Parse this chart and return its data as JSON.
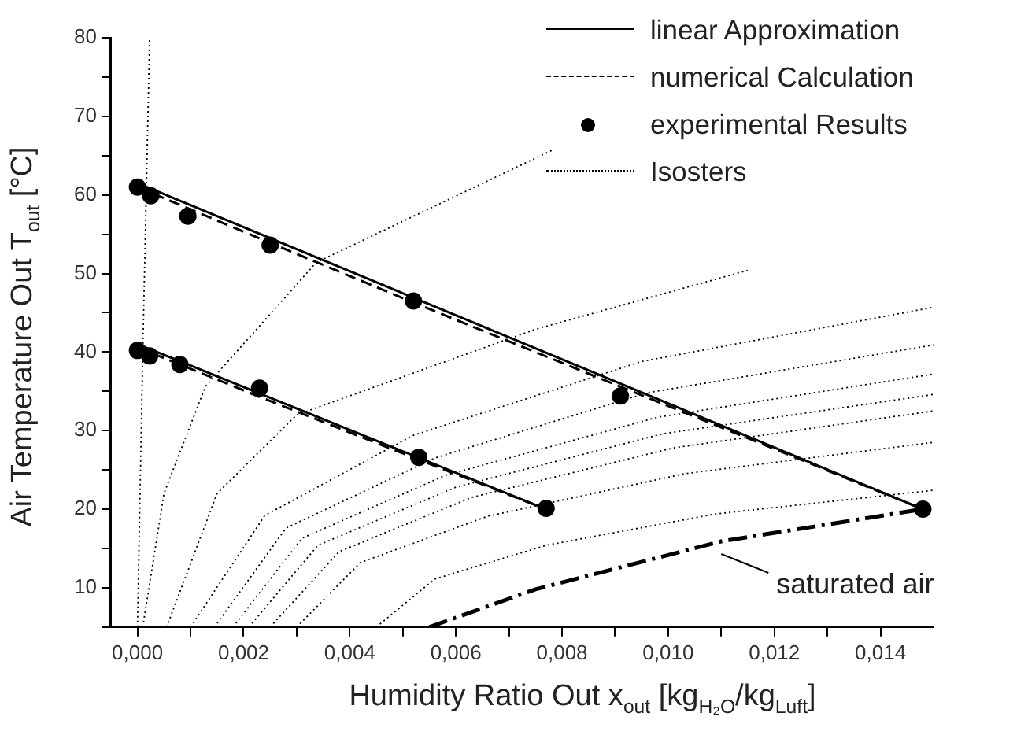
{
  "chart_data": {
    "type": "line",
    "xlabel": "Humidity Ratio Out  x$_{out}$  [kg$_{H₂O}$/kg$_{Luft}$]",
    "ylabel": "Air Temperature Out  T$_{out}$  [°C]",
    "xlim": [
      -0.0005,
      0.015
    ],
    "ylim": [
      5,
      80
    ],
    "xticks": [
      {
        "value": 0,
        "label": "0,000"
      },
      {
        "value": 0.001,
        "label": null
      },
      {
        "value": 0.002,
        "label": "0,002"
      },
      {
        "value": 0.003,
        "label": null
      },
      {
        "value": 0.004,
        "label": "0,004"
      },
      {
        "value": 0.005,
        "label": null
      },
      {
        "value": 0.006,
        "label": "0,006"
      },
      {
        "value": 0.007,
        "label": null
      },
      {
        "value": 0.008,
        "label": "0,008"
      },
      {
        "value": 0.009,
        "label": null
      },
      {
        "value": 0.01,
        "label": "0,010"
      },
      {
        "value": 0.011,
        "label": null
      },
      {
        "value": 0.012,
        "label": "0,012"
      },
      {
        "value": 0.013,
        "label": null
      },
      {
        "value": 0.014,
        "label": "0,014"
      }
    ],
    "yticks": [
      {
        "value": 5,
        "label": null
      },
      10,
      {
        "value": 15,
        "label": null
      },
      20,
      {
        "value": 25,
        "label": null
      },
      30,
      {
        "value": 35,
        "label": null
      },
      40,
      {
        "value": 45,
        "label": null
      },
      50,
      {
        "value": 55,
        "label": null
      },
      60,
      {
        "value": 65,
        "label": null
      },
      70,
      {
        "value": 75,
        "label": null
      },
      80
    ],
    "legend": "top right",
    "series": [
      {
        "name": "linear Approximation",
        "color": "#000000",
        "line_style": "solid",
        "marker": "none",
        "x": [
          0,
          0.0148
        ],
        "values": [
          61.5,
          20
        ]
      },
      {
        "color": "#000000",
        "line_style": "solid",
        "marker": "none",
        "x": [
          0,
          0.0077
        ],
        "values": [
          41,
          20
        ]
      },
      {
        "name": "numerical Calculation",
        "color": "#000000",
        "line_style": "dashed",
        "marker": "none",
        "x": [
          0,
          0.0025,
          0.0052,
          0.0091,
          0.0148
        ],
        "values": [
          61,
          53.9,
          46.3,
          35.6,
          20
        ]
      },
      {
        "color": "#000000",
        "line_style": "dashed",
        "marker": "none",
        "x": [
          0,
          0.0023,
          0.0053,
          0.0077
        ],
        "values": [
          40.6,
          34.3,
          26.3,
          20
        ]
      },
      {
        "name": "experimental Results",
        "type": "scatter",
        "color": "#000000",
        "marker": "circle",
        "x": [
          0,
          0.00025,
          0.00095,
          0.0025,
          0.0052,
          0.0091,
          0.0148,
          0,
          0.00023,
          0.0008,
          0.0023,
          0.0053,
          0.0077
        ],
        "values": [
          61,
          59.9,
          57.3,
          53.6,
          46.5,
          34.4,
          20,
          40.2,
          39.5,
          38.4,
          35.4,
          26.6,
          20.1
        ]
      },
      {
        "name": "Isosters",
        "color": "#000000",
        "line_style": "dotted",
        "marker": "none",
        "x": [
          0,
          0.0001,
          0.00023
        ],
        "values": [
          5,
          40,
          80
        ]
      },
      {
        "color": "#000000",
        "line_style": "dotted",
        "marker": "none",
        "x": [
          0.0001,
          0.0005,
          0.00128,
          0.00337,
          0.00785
        ],
        "values": [
          5,
          22,
          35.6,
          51.4,
          65.8
        ]
      },
      {
        "color": "#000000",
        "line_style": "dotted",
        "marker": "none",
        "x": [
          0.00055,
          0.0015,
          0.003,
          0.0075,
          0.0115
        ],
        "values": [
          5,
          22,
          32,
          42.9,
          50.4
        ]
      },
      {
        "color": "#000000",
        "line_style": "dotted",
        "marker": "none",
        "x": [
          0.001,
          0.0024,
          0.0052,
          0.0095,
          0.015
        ],
        "values": [
          5,
          19.2,
          29.4,
          38.8,
          45.7
        ]
      },
      {
        "color": "#000000",
        "line_style": "dotted",
        "marker": "none",
        "x": [
          0.00145,
          0.0028,
          0.0056,
          0.0096,
          0.015
        ],
        "values": [
          5,
          17.6,
          26.5,
          34.8,
          40.9
        ]
      },
      {
        "color": "#000000",
        "line_style": "dotted",
        "marker": "none",
        "x": [
          0.0018,
          0.0031,
          0.0058,
          0.0098,
          0.015
        ],
        "values": [
          5,
          16.3,
          24.3,
          31.7,
          37.2
        ]
      },
      {
        "color": "#000000",
        "line_style": "dotted",
        "marker": "none",
        "x": [
          0.0021,
          0.0034,
          0.006,
          0.0099,
          0.015
        ],
        "values": [
          5,
          15.4,
          22.8,
          29.6,
          34.6
        ]
      },
      {
        "color": "#000000",
        "line_style": "dotted",
        "marker": "none",
        "x": [
          0.0025,
          0.0038,
          0.0063,
          0.0101,
          0.015
        ],
        "values": [
          5,
          14.6,
          21.5,
          27.8,
          32.5
        ]
      },
      {
        "color": "#000000",
        "line_style": "dotted",
        "marker": "none",
        "x": [
          0.003,
          0.0042,
          0.0066,
          0.0103,
          0.015
        ],
        "values": [
          5,
          13.2,
          19.1,
          24.5,
          28.5
        ]
      },
      {
        "color": "#000000",
        "line_style": "dotted",
        "marker": "none",
        "x": [
          0.0045,
          0.0056,
          0.0077,
          0.0109,
          0.015
        ],
        "values": [
          5,
          11.1,
          15.4,
          19.4,
          22.4
        ]
      },
      {
        "name": "saturated air",
        "color": "#000000",
        "line_style": "dashdot",
        "marker": "none",
        "x": [
          0.0055,
          0.0075,
          0.011,
          0.0148
        ],
        "values": [
          5,
          9.8,
          15.9,
          20
        ]
      }
    ]
  }
}
